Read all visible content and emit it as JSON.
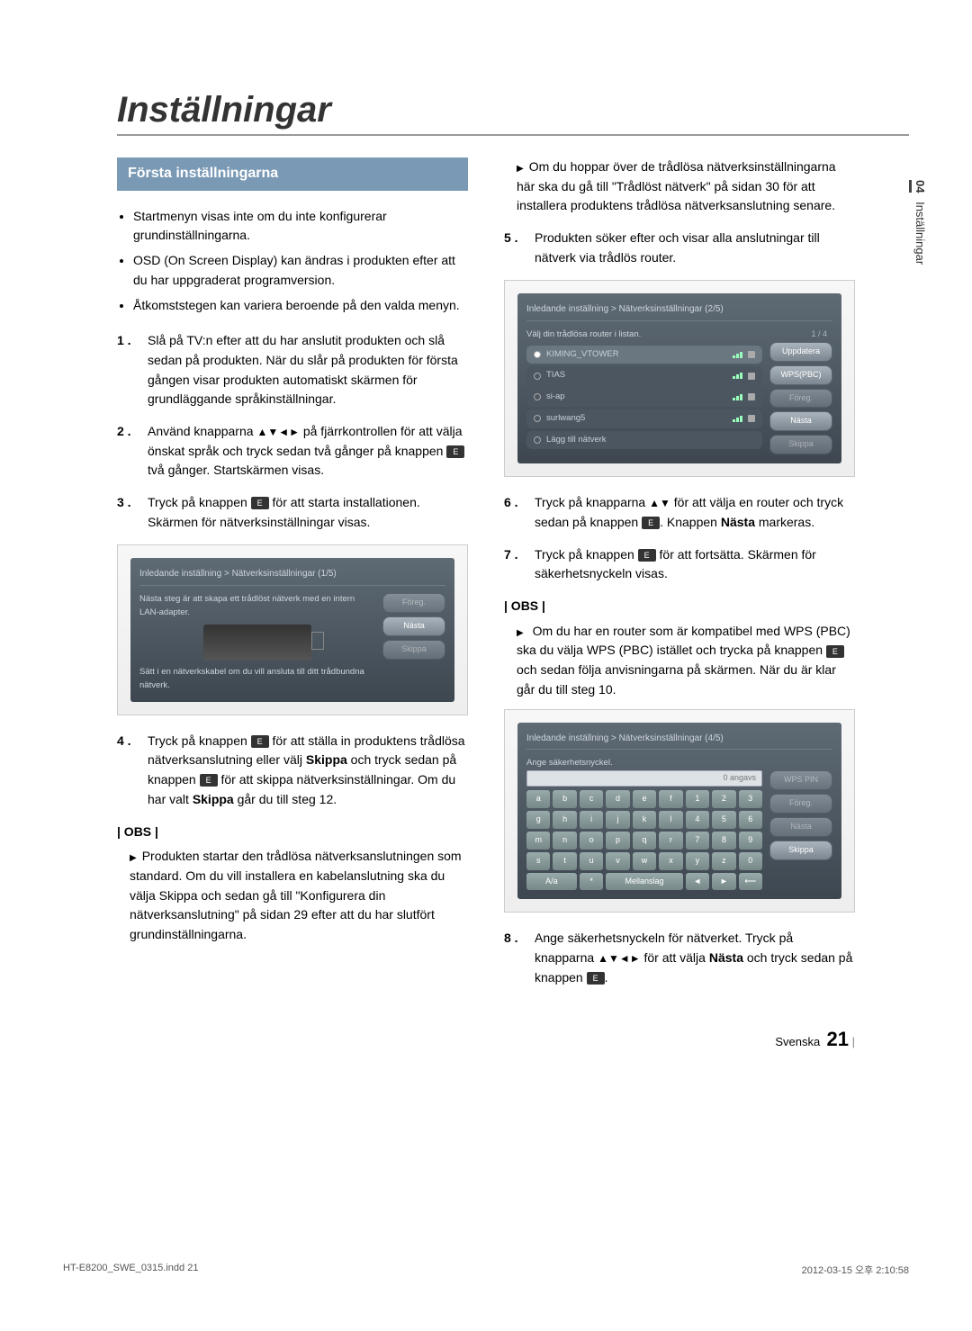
{
  "page": {
    "title": "Inställningar",
    "side_tab_num": "04",
    "side_tab_label": "Inställningar",
    "footer_left": "HT-E8200_SWE_0315.indd   21",
    "footer_right": "2012-03-15   오후 2:10:58",
    "page_label": "Svenska",
    "page_number": "21"
  },
  "section_head": "Första inställningarna",
  "intro_bullets": [
    "Startmenyn visas inte om du inte konfigurerar grundinställningarna.",
    "OSD (On Screen Display) kan ändras i produkten efter att du har uppgraderat programversion.",
    "Åtkomststegen kan variera beroende på den valda menyn."
  ],
  "left_steps": {
    "s1": "Slå på TV:n efter att du har anslutit produkten och slå sedan på produkten. När du slår på produkten för första gången visar produkten automatiskt skärmen för grundläggande språkinställningar.",
    "s2_a": "Använd knapparna ",
    "s2_arrows": "▲▼◄►",
    "s2_b": " på fjärrkontrollen för att välja önskat språk och tryck sedan två gånger på knappen ",
    "s2_c": " två gånger. Startskärmen visas.",
    "s3_a": "Tryck på knappen ",
    "s3_b": " för att starta installationen. Skärmen för nätverksinställningar visas.",
    "s4_a": "Tryck på knappen ",
    "s4_b": " för att ställa in produktens trådlösa nätverksanslutning eller välj ",
    "s4_skip": "Skippa",
    "s4_c": " och tryck sedan på knappen ",
    "s4_d": " för att skippa nätverksinställningar. Om du har valt ",
    "s4_e": " går du till steg 12."
  },
  "left_obs_head": "| OBS |",
  "left_obs": "Produkten startar den trådlösa nätverksanslutningen som standard. Om du vill installera en kabelanslutning ska du välja Skippa och sedan gå till \"Konfigurera din nätverksanslutning\" på sidan 29 efter att du har slutfört grundinställningarna.",
  "right_top_note": "Om du hoppar över de trådlösa nätverksinställningarna här ska du gå till \"Trådlöst nätverk\" på sidan 30 för att installera produktens trådlösa nätverksanslutning senare.",
  "right_steps": {
    "s5": "Produkten söker efter och visar alla anslutningar till nätverk via trådlös router.",
    "s6_a": "Tryck på knapparna ",
    "s6_arrows": "▲▼",
    "s6_b": " för att välja en router och tryck sedan på knappen ",
    "s6_c": ". Knappen ",
    "s6_next": "Nästa",
    "s6_d": " markeras.",
    "s7_a": "Tryck på knappen ",
    "s7_b": " för att fortsätta. Skärmen för säkerhetsnyckeln visas.",
    "s8_a": "Ange säkerhetsnyckeln för nätverket. Tryck på knapparna ",
    "s8_arrows": "▲▼◄►",
    "s8_b": " för att välja ",
    "s8_next": "Nästa",
    "s8_c": " och tryck sedan på knappen ",
    "s8_d": "."
  },
  "right_obs_head": "| OBS |",
  "right_obs_a": "Om du har en router som är kompatibel med WPS (PBC) ska du välja WPS (PBC) istället och trycka på knappen ",
  "right_obs_b": " och sedan följa anvisningarna på skärmen. När du är klar går du till steg 10.",
  "tv1": {
    "breadcrumb": "Inledande inställning > Nätverksinställningar (1/5)",
    "line": "Nästa steg är att skapa ett trådlöst nätverk med en intern LAN-adapter.",
    "hint": "Sätt i en nätverkskabel om du vill ansluta till ditt trådbundna nätverk.",
    "buttons": [
      "Föreg.",
      "Nästa",
      "Skippa"
    ]
  },
  "tv2": {
    "breadcrumb": "Inledande inställning > Nätverksinställningar (2/5)",
    "line": "Välj din trådlösa router i listan.",
    "pager": "1 / 4",
    "routers": [
      "KIMING_VTOWER",
      "TIAS",
      "si-ap",
      "surlwang5",
      "Lägg till nätverk"
    ],
    "buttons": [
      "Uppdatera",
      "WPS(PBC)",
      "Föreg.",
      "Nästa",
      "Skippa"
    ]
  },
  "tv3": {
    "breadcrumb": "Inledande inställning > Nätverksinställningar (4/5)",
    "line": "Ange säkerhetsnyckel.",
    "count": "0 angavs",
    "keys_r1": [
      "a",
      "b",
      "c",
      "d",
      "e",
      "f",
      "1",
      "2",
      "3"
    ],
    "keys_r2": [
      "g",
      "h",
      "i",
      "j",
      "k",
      "l",
      "4",
      "5",
      "6"
    ],
    "keys_r3": [
      "m",
      "n",
      "o",
      "p",
      "q",
      "r",
      "7",
      "8",
      "9"
    ],
    "keys_r4": [
      "s",
      "t",
      "u",
      "v",
      "w",
      "x",
      "y",
      "z",
      "0"
    ],
    "keys_bottom": [
      "A/a",
      "*",
      "Mellanslag",
      "◄",
      "►",
      "⟵"
    ],
    "buttons": [
      "WPS PIN",
      "Föreg.",
      "Nästa",
      "Skippa"
    ]
  },
  "enter_glyph": "E"
}
